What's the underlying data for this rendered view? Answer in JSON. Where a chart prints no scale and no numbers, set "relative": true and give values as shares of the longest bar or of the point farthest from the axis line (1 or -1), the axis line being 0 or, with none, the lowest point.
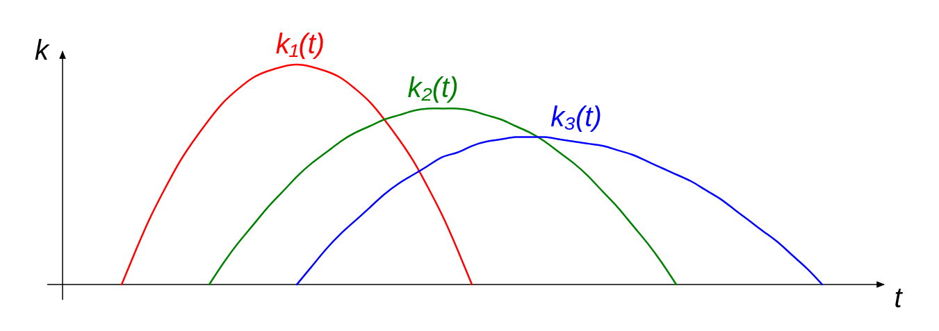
{
  "chart_data": {
    "type": "line",
    "relative": true,
    "xlabel": "t",
    "ylabel": "k",
    "categories": [
      null,
      null,
      null,
      null,
      null,
      null,
      null,
      null,
      null,
      null,
      null,
      null,
      null,
      null,
      null,
      null,
      null,
      null,
      null,
      null,
      null,
      null,
      null,
      null,
      null,
      null,
      null,
      null,
      null,
      null,
      null,
      null,
      null,
      null,
      null,
      null,
      null,
      null,
      null,
      null,
      null,
      null,
      null,
      null,
      null,
      null,
      null,
      null,
      null,
      null,
      null,
      null,
      null,
      null,
      null,
      null
    ],
    "series": [
      {
        "name": "k₁(t)",
        "color": "#ff0000",
        "values": [
          null,
          null,
          null,
          null,
          0,
          0.16,
          0.31,
          0.44,
          0.56,
          0.66,
          0.75,
          0.83,
          0.89,
          0.94,
          0.97,
          0.99,
          1,
          0.99,
          0.97,
          0.94,
          0.89,
          0.83,
          0.75,
          0.66,
          0.56,
          0.44,
          0.31,
          0.16,
          0,
          null,
          null,
          null,
          null,
          null,
          null,
          null,
          null,
          null,
          null,
          null,
          null,
          null,
          null,
          null,
          null,
          null,
          null,
          null,
          null,
          null,
          null,
          null,
          null,
          null,
          null,
          null
        ]
      },
      {
        "name": "k₂(t)",
        "color": "#008000",
        "values": [
          null,
          null,
          null,
          null,
          null,
          null,
          null,
          null,
          null,
          null,
          0,
          0.1,
          0.19,
          0.27,
          0.35,
          0.42,
          0.49,
          0.55,
          0.6,
          0.65,
          0.69,
          0.72,
          0.75,
          0.77,
          0.79,
          0.8,
          0.8,
          0.8,
          0.79,
          0.77,
          0.75,
          0.72,
          0.69,
          0.65,
          0.6,
          0.55,
          0.49,
          0.42,
          0.35,
          0.27,
          0.19,
          0.1,
          0,
          null,
          null,
          null,
          null,
          null,
          null,
          null,
          null,
          null,
          null,
          null,
          null,
          null
        ]
      },
      {
        "name": "k₃(t)",
        "color": "#0000ff",
        "values": [
          null,
          null,
          null,
          null,
          null,
          null,
          null,
          null,
          null,
          null,
          null,
          null,
          null,
          null,
          null,
          null,
          0,
          0.08,
          0.16,
          0.23,
          0.29,
          0.35,
          0.41,
          0.46,
          0.5,
          0.54,
          0.58,
          0.6,
          0.63,
          0.65,
          0.66,
          0.67,
          0.67,
          0.67,
          0.66,
          0.65,
          0.64,
          0.63,
          0.61,
          0.59,
          0.56,
          0.53,
          0.5,
          0.47,
          0.43,
          0.39,
          0.34,
          0.29,
          0.24,
          0.19,
          0.13,
          0.07,
          0,
          null,
          null,
          null
        ]
      }
    ]
  }
}
